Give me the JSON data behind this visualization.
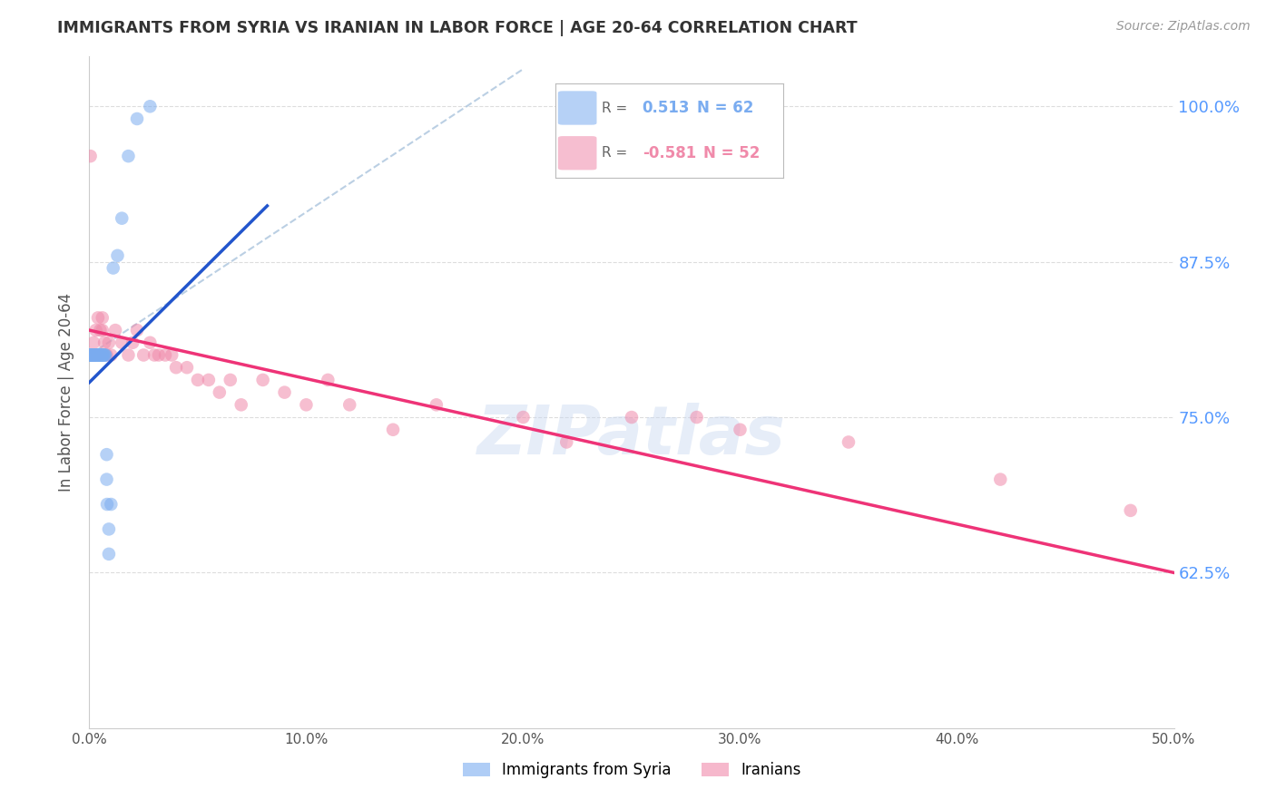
{
  "title": "IMMIGRANTS FROM SYRIA VS IRANIAN IN LABOR FORCE | AGE 20-64 CORRELATION CHART",
  "source": "Source: ZipAtlas.com",
  "ylabel": "In Labor Force | Age 20-64",
  "xlim": [
    0.0,
    0.5
  ],
  "ylim": [
    0.5,
    1.04
  ],
  "xticks": [
    0.0,
    0.1,
    0.2,
    0.3,
    0.4,
    0.5
  ],
  "xticklabels": [
    "0.0%",
    "10.0%",
    "20.0%",
    "30.0%",
    "40.0%",
    "50.0%"
  ],
  "yticks": [
    0.625,
    0.75,
    0.875,
    1.0
  ],
  "yticklabels": [
    "62.5%",
    "75.0%",
    "87.5%",
    "100.0%"
  ],
  "syria_R": 0.513,
  "syria_N": 62,
  "iran_R": -0.581,
  "iran_N": 52,
  "syria_color": "#7aacf0",
  "iran_color": "#f08aaa",
  "watermark": "ZIPatlas",
  "syria_scatter_x": [
    0.0003,
    0.0005,
    0.0007,
    0.0008,
    0.001,
    0.001,
    0.001,
    0.0012,
    0.0013,
    0.0014,
    0.0015,
    0.0015,
    0.0016,
    0.0017,
    0.0018,
    0.0018,
    0.002,
    0.002,
    0.002,
    0.0022,
    0.0023,
    0.0024,
    0.0025,
    0.0025,
    0.0026,
    0.0027,
    0.003,
    0.003,
    0.003,
    0.0032,
    0.0033,
    0.0035,
    0.0037,
    0.004,
    0.004,
    0.0042,
    0.0043,
    0.0045,
    0.0048,
    0.005,
    0.005,
    0.0052,
    0.0055,
    0.006,
    0.006,
    0.0062,
    0.0065,
    0.007,
    0.0072,
    0.0075,
    0.008,
    0.008,
    0.0082,
    0.009,
    0.009,
    0.01,
    0.011,
    0.013,
    0.015,
    0.018,
    0.022,
    0.028
  ],
  "syria_scatter_y": [
    0.8,
    0.8,
    0.8,
    0.8,
    0.8,
    0.8,
    0.8,
    0.8,
    0.8,
    0.8,
    0.8,
    0.8,
    0.8,
    0.8,
    0.8,
    0.8,
    0.8,
    0.8,
    0.8,
    0.8,
    0.8,
    0.8,
    0.8,
    0.8,
    0.8,
    0.8,
    0.8,
    0.8,
    0.8,
    0.8,
    0.8,
    0.8,
    0.8,
    0.8,
    0.8,
    0.8,
    0.8,
    0.8,
    0.8,
    0.8,
    0.8,
    0.8,
    0.8,
    0.8,
    0.8,
    0.8,
    0.8,
    0.8,
    0.8,
    0.8,
    0.7,
    0.72,
    0.68,
    0.66,
    0.64,
    0.68,
    0.87,
    0.88,
    0.91,
    0.96,
    0.99,
    1.0
  ],
  "iran_scatter_x": [
    0.0005,
    0.001,
    0.001,
    0.0015,
    0.002,
    0.002,
    0.0025,
    0.003,
    0.003,
    0.004,
    0.004,
    0.005,
    0.005,
    0.006,
    0.006,
    0.007,
    0.008,
    0.009,
    0.01,
    0.012,
    0.015,
    0.018,
    0.02,
    0.022,
    0.025,
    0.028,
    0.03,
    0.032,
    0.035,
    0.038,
    0.04,
    0.045,
    0.05,
    0.055,
    0.06,
    0.065,
    0.07,
    0.08,
    0.09,
    0.1,
    0.11,
    0.12,
    0.14,
    0.16,
    0.2,
    0.22,
    0.25,
    0.28,
    0.3,
    0.35,
    0.42,
    0.48
  ],
  "iran_scatter_y": [
    0.96,
    0.8,
    0.8,
    0.8,
    0.81,
    0.8,
    0.8,
    0.8,
    0.82,
    0.8,
    0.83,
    0.82,
    0.8,
    0.82,
    0.83,
    0.81,
    0.8,
    0.81,
    0.8,
    0.82,
    0.81,
    0.8,
    0.81,
    0.82,
    0.8,
    0.81,
    0.8,
    0.8,
    0.8,
    0.8,
    0.79,
    0.79,
    0.78,
    0.78,
    0.77,
    0.78,
    0.76,
    0.78,
    0.77,
    0.76,
    0.78,
    0.76,
    0.74,
    0.76,
    0.75,
    0.73,
    0.75,
    0.75,
    0.74,
    0.73,
    0.7,
    0.675
  ],
  "syria_line_x": [
    0.0,
    0.082
  ],
  "syria_line_y": [
    0.778,
    0.92
  ],
  "iran_line_x": [
    0.0,
    0.5
  ],
  "iran_line_y": [
    0.82,
    0.625
  ],
  "ref_line_x": [
    0.0,
    0.2
  ],
  "ref_line_y": [
    0.8,
    1.03
  ]
}
